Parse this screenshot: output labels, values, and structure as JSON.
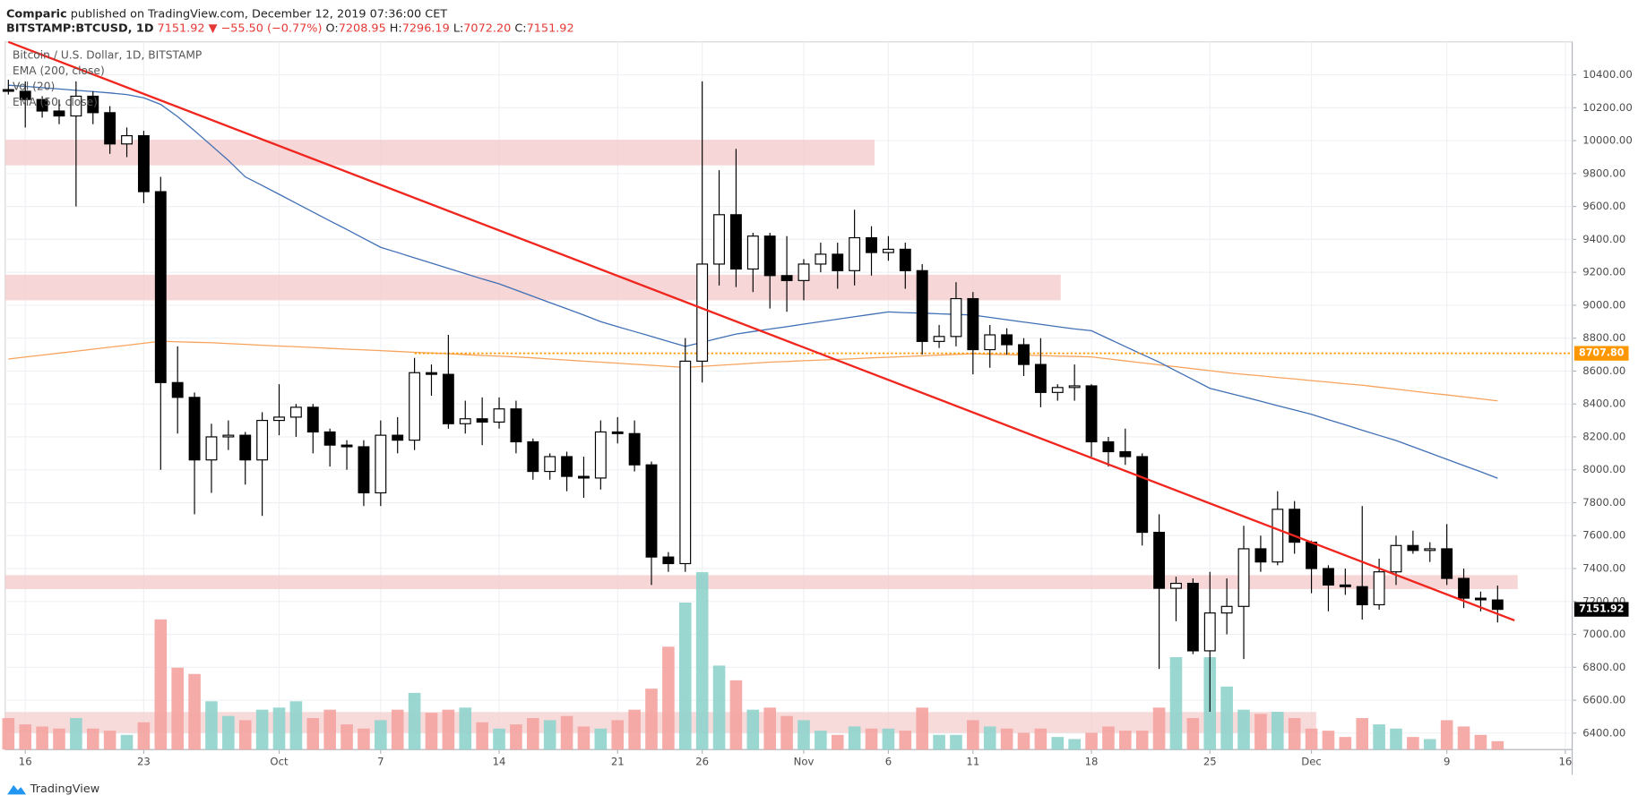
{
  "header": {
    "author": "Comparic",
    "published": "published on TradingView.com, December 12, 2019 07:36:00 CET",
    "symbol": "BITSTAMP:BTCUSD, 1D",
    "last": "7151.92",
    "change": "▼ −55.50 (−0.77%)",
    "o_label": "O:",
    "o": "7208.95",
    "h_label": "H:",
    "h": "7296.19",
    "l_label": "L:",
    "l": "7072.20",
    "c_label": "C:",
    "c": "7151.92",
    "brand": "TradingView"
  },
  "chart_data": {
    "type": "candlestick",
    "title": "Bitcoin / U.S. Dollar, 1D, BITSTAMP",
    "x": [
      "2019-09-15",
      "2019-09-16",
      "2019-09-17",
      "2019-09-18",
      "2019-09-19",
      "2019-09-20",
      "2019-09-21",
      "2019-09-22",
      "2019-09-23",
      "2019-09-24",
      "2019-09-25",
      "2019-09-26",
      "2019-09-27",
      "2019-09-28",
      "2019-09-29",
      "2019-09-30",
      "2019-10-01",
      "2019-10-02",
      "2019-10-03",
      "2019-10-04",
      "2019-10-05",
      "2019-10-06",
      "2019-10-07",
      "2019-10-08",
      "2019-10-09",
      "2019-10-10",
      "2019-10-11",
      "2019-10-12",
      "2019-10-13",
      "2019-10-14",
      "2019-10-15",
      "2019-10-16",
      "2019-10-17",
      "2019-10-18",
      "2019-10-19",
      "2019-10-20",
      "2019-10-21",
      "2019-10-22",
      "2019-10-23",
      "2019-10-24",
      "2019-10-25",
      "2019-10-26",
      "2019-10-27",
      "2019-10-28",
      "2019-10-29",
      "2019-10-30",
      "2019-10-31",
      "2019-11-01",
      "2019-11-02",
      "2019-11-03",
      "2019-11-04",
      "2019-11-05",
      "2019-11-06",
      "2019-11-07",
      "2019-11-08",
      "2019-11-09",
      "2019-11-10",
      "2019-11-11",
      "2019-11-12",
      "2019-11-13",
      "2019-11-14",
      "2019-11-15",
      "2019-11-16",
      "2019-11-17",
      "2019-11-18",
      "2019-11-19",
      "2019-11-20",
      "2019-11-21",
      "2019-11-22",
      "2019-11-23",
      "2019-11-24",
      "2019-11-25",
      "2019-11-26",
      "2019-11-27",
      "2019-11-28",
      "2019-11-29",
      "2019-11-30",
      "2019-12-01",
      "2019-12-02",
      "2019-12-03",
      "2019-12-04",
      "2019-12-05",
      "2019-12-06",
      "2019-12-07",
      "2019-12-08",
      "2019-12-09",
      "2019-12-10",
      "2019-12-11",
      "2019-12-12"
    ],
    "open": [
      10310,
      10300,
      10250,
      10180,
      10150,
      10270,
      10170,
      9980,
      10030,
      9690,
      8530,
      8440,
      8060,
      8200,
      8210,
      8060,
      8300,
      8320,
      8380,
      8230,
      8150,
      8140,
      7860,
      8210,
      8180,
      8590,
      8580,
      8280,
      8310,
      8290,
      8370,
      8170,
      7990,
      8080,
      7960,
      7950,
      8230,
      8220,
      8030,
      7470,
      7430,
      8660,
      9250,
      9550,
      9220,
      9420,
      9180,
      9150,
      9250,
      9310,
      9210,
      9410,
      9320,
      9340,
      9210,
      8780,
      8810,
      9040,
      8730,
      8820,
      8760,
      8640,
      8470,
      8500,
      8510,
      8170,
      8110,
      8080,
      7620,
      7280,
      7310,
      6900,
      7130,
      7170,
      7520,
      7440,
      7760,
      7560,
      7400,
      7300,
      7290,
      7180,
      7380,
      7540,
      7510,
      7520,
      7340,
      7220,
      7208.95
    ],
    "high": [
      10370,
      10360,
      10270,
      10250,
      10360,
      10300,
      10210,
      10080,
      10060,
      9780,
      8750,
      8470,
      8280,
      8300,
      8230,
      8350,
      8520,
      8400,
      8400,
      8250,
      8180,
      8180,
      8300,
      8320,
      8680,
      8640,
      8820,
      8420,
      8440,
      8440,
      8420,
      8190,
      8100,
      8110,
      8080,
      8300,
      8320,
      8300,
      8050,
      7500,
      8800,
      10360,
      9820,
      9950,
      9440,
      9440,
      9420,
      9280,
      9380,
      9380,
      9580,
      9480,
      9420,
      9380,
      9250,
      8880,
      9140,
      9080,
      8880,
      8860,
      8800,
      8800,
      8520,
      8640,
      8520,
      8200,
      8250,
      8100,
      7730,
      7350,
      7340,
      7380,
      7340,
      7660,
      7600,
      7870,
      7810,
      7570,
      7420,
      7400,
      7780,
      7460,
      7600,
      7630,
      7560,
      7670,
      7400,
      7260,
      7296.19
    ],
    "low": [
      10280,
      10080,
      10140,
      10100,
      9600,
      10100,
      9920,
      9900,
      9620,
      8000,
      8220,
      7730,
      7860,
      8120,
      7910,
      7720,
      8210,
      8200,
      8100,
      8020,
      8000,
      7780,
      7780,
      8100,
      8120,
      8450,
      8250,
      8220,
      8150,
      8250,
      8100,
      7940,
      7940,
      7870,
      7830,
      7880,
      8160,
      7990,
      7300,
      7380,
      7380,
      8530,
      9120,
      9110,
      9080,
      8980,
      8960,
      9030,
      9200,
      9100,
      9120,
      9180,
      9270,
      9100,
      8700,
      8740,
      8750,
      8580,
      8620,
      8700,
      8570,
      8380,
      8420,
      8420,
      8080,
      8020,
      8030,
      7540,
      6790,
      7080,
      6880,
      6530,
      7000,
      6850,
      7380,
      7420,
      7490,
      7250,
      7140,
      7240,
      7090,
      7150,
      7300,
      7490,
      7440,
      7300,
      7160,
      7140,
      7072.2
    ],
    "close": [
      10300,
      10250,
      10180,
      10150,
      10270,
      10170,
      9980,
      10030,
      9690,
      8530,
      8440,
      8060,
      8200,
      8210,
      8060,
      8300,
      8320,
      8380,
      8230,
      8150,
      8140,
      7860,
      8210,
      8180,
      8590,
      8580,
      8280,
      8310,
      8290,
      8370,
      8170,
      7990,
      8080,
      7960,
      7950,
      8230,
      8220,
      8030,
      7470,
      7430,
      8660,
      9250,
      9550,
      9220,
      9420,
      9180,
      9150,
      9250,
      9310,
      9210,
      9410,
      9320,
      9340,
      9210,
      8780,
      8810,
      9040,
      8730,
      8820,
      8760,
      8640,
      8470,
      8500,
      8510,
      8170,
      8110,
      8080,
      7620,
      7280,
      7310,
      6900,
      7130,
      7170,
      7520,
      7440,
      7760,
      7560,
      7400,
      7300,
      7290,
      7180,
      7380,
      7540,
      7510,
      7520,
      7340,
      7220,
      7210,
      7151.92
    ],
    "volume_name": "Vol (20)",
    "volume": [
      30,
      24,
      22,
      20,
      30,
      20,
      18,
      14,
      26,
      124,
      78,
      72,
      46,
      32,
      28,
      38,
      40,
      46,
      30,
      38,
      24,
      20,
      28,
      38,
      54,
      35,
      38,
      40,
      26,
      20,
      24,
      30,
      28,
      32,
      22,
      20,
      28,
      38,
      58,
      98,
      140,
      169,
      80,
      66,
      38,
      40,
      32,
      28,
      18,
      14,
      22,
      20,
      20,
      18,
      40,
      14,
      14,
      28,
      22,
      20,
      16,
      20,
      12,
      10,
      16,
      22,
      18,
      18,
      40,
      88,
      30,
      88,
      60,
      38,
      34,
      36,
      30,
      20,
      18,
      12,
      30,
      24,
      20,
      12,
      10,
      28,
      22,
      14,
      8
    ],
    "up_color": "#ffffff",
    "down_color": "#000000",
    "up_volume_color": "#8fd3cc",
    "down_volume_color": "#f4a3a0",
    "indicators": [
      {
        "name": "EMA (200, close)",
        "color": "#f7a35c",
        "values": [
          8673,
          8685,
          8697,
          8709,
          8721,
          8733,
          8745,
          8757,
          8769,
          8781,
          8778,
          8775,
          8772,
          8767,
          8762,
          8757,
          8752,
          8748,
          8743,
          8738,
          8733,
          8729,
          8724,
          8719,
          8714,
          8710,
          8705,
          8700,
          8695,
          8691,
          8686,
          8680,
          8673,
          8667,
          8660,
          8654,
          8648,
          8641,
          8635,
          8628,
          8622,
          8628,
          8635,
          8641,
          8648,
          8654,
          8658,
          8663,
          8667,
          8671,
          8675,
          8680,
          8684,
          8688,
          8692,
          8697,
          8701,
          8705,
          8702,
          8700,
          8697,
          8694,
          8691,
          8689,
          8686,
          8674,
          8662,
          8650,
          8638,
          8626,
          8614,
          8602,
          8590,
          8580,
          8571,
          8561,
          8552,
          8542,
          8533,
          8523,
          8514,
          8502,
          8490,
          8478,
          8466,
          8455,
          8443,
          8431,
          8419
        ]
      },
      {
        "name": "EMA (50, close)",
        "color": "#3f6fb5",
        "values": [
          10337,
          10330,
          10322,
          10314,
          10306,
          10298,
          10290,
          10280,
          10260,
          10220,
          10146,
          10060,
          9970,
          9880,
          9780,
          9727,
          9674,
          9620,
          9566,
          9512,
          9460,
          9406,
          9352,
          9320,
          9288,
          9256,
          9224,
          9192,
          9160,
          9130,
          9092,
          9054,
          9016,
          8978,
          8940,
          8900,
          8870,
          8840,
          8810,
          8780,
          8750,
          8775,
          8800,
          8825,
          8840,
          8855,
          8870,
          8885,
          8900,
          8915,
          8930,
          8945,
          8959,
          8955,
          8952,
          8948,
          8944,
          8940,
          8926,
          8912,
          8898,
          8884,
          8870,
          8856,
          8845,
          8797,
          8749,
          8701,
          8654,
          8601,
          8548,
          8495,
          8469,
          8443,
          8417,
          8390,
          8364,
          8337,
          8305,
          8273,
          8241,
          8209,
          8178,
          8140,
          8102,
          8064,
          8026,
          7988,
          7949
        ]
      }
    ],
    "zones": [
      {
        "from": "2019-09-15",
        "to": "2019-11-05",
        "low": 9850,
        "high": 10005
      },
      {
        "from": "2019-09-15",
        "to": "2019-11-16",
        "low": 9030,
        "high": 9185
      },
      {
        "from": "2019-09-15",
        "to": "2019-12-13",
        "low": 7275,
        "high": 7360
      }
    ],
    "zone_color": "#f4cccc",
    "trendline": {
      "from": "2019-09-15",
      "from_value": 10600,
      "to": "2019-12-13",
      "to_value": 7085,
      "color": "#f0261e"
    },
    "level": {
      "value": 8707.8,
      "label": "8707.80",
      "from": "2019-10-09",
      "color": "#ff9800"
    },
    "ylim": [
      6300,
      10600
    ],
    "yticks": [
      {
        "value": 6400,
        "label": "6400.00"
      },
      {
        "value": 6600,
        "label": "6600.00"
      },
      {
        "value": 6800,
        "label": "6800.00"
      },
      {
        "value": 7000,
        "label": "7000.00"
      },
      {
        "value": 7200,
        "label": "7200.00"
      },
      {
        "value": 7400,
        "label": "7400.00"
      },
      {
        "value": 7600,
        "label": "7600.00"
      },
      {
        "value": 7800,
        "label": "7800.00"
      },
      {
        "value": 8000,
        "label": "8000.00"
      },
      {
        "value": 8200,
        "label": "8200.00"
      },
      {
        "value": 8400,
        "label": "8400.00"
      },
      {
        "value": 8600,
        "label": "8600.00"
      },
      {
        "value": 8800,
        "label": "8800.00"
      },
      {
        "value": 9000,
        "label": "9000.00"
      },
      {
        "value": 9200,
        "label": "9200.00"
      },
      {
        "value": 9400,
        "label": "9400.00"
      },
      {
        "value": 9600,
        "label": "9600.00"
      },
      {
        "value": 9800,
        "label": "9800.00"
      },
      {
        "value": 10000,
        "label": "10000.00"
      },
      {
        "value": 10200,
        "label": "10200.00"
      },
      {
        "value": 10400,
        "label": "10400.00"
      }
    ],
    "xticks": [
      {
        "value": "2019-09-16",
        "label": "16"
      },
      {
        "value": "2019-09-23",
        "label": "23"
      },
      {
        "value": "2019-10-01",
        "label": "Oct"
      },
      {
        "value": "2019-10-07",
        "label": "7"
      },
      {
        "value": "2019-10-14",
        "label": "14"
      },
      {
        "value": "2019-10-21",
        "label": "21"
      },
      {
        "value": "2019-10-26",
        "label": "26"
      },
      {
        "value": "2019-11-01",
        "label": "Nov"
      },
      {
        "value": "2019-11-06",
        "label": "6"
      },
      {
        "value": "2019-11-11",
        "label": "11"
      },
      {
        "value": "2019-11-18",
        "label": "18"
      },
      {
        "value": "2019-11-25",
        "label": "25"
      },
      {
        "value": "2019-12-01",
        "label": "Dec"
      },
      {
        "value": "2019-12-09",
        "label": "9"
      },
      {
        "value": "2019-12-16",
        "label": "16"
      }
    ],
    "grid": true
  }
}
